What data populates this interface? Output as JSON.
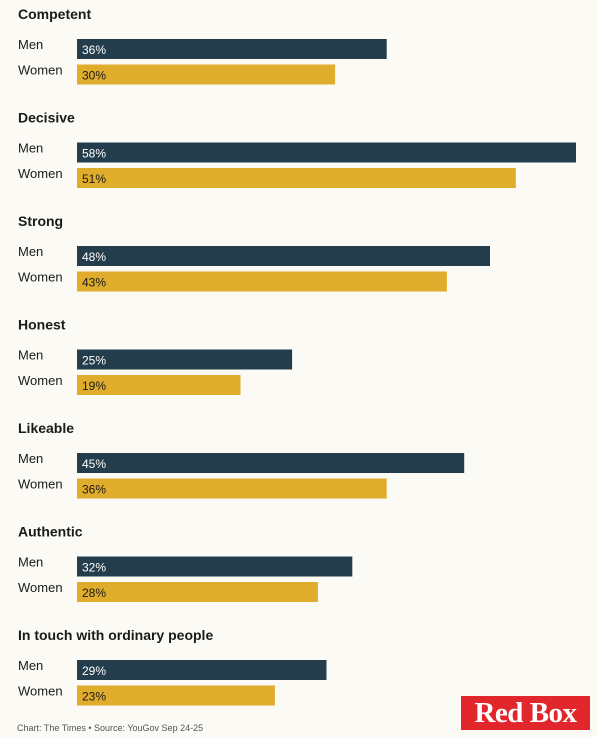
{
  "colors": {
    "men": "#243d4c",
    "women": "#e0ac2b",
    "men_text": "#ffffff",
    "women_text": "#1a1a1a"
  },
  "chart_data": {
    "type": "bar",
    "orientation": "horizontal",
    "title": "",
    "xlabel": "",
    "ylabel": "",
    "xlim": [
      0,
      58
    ],
    "value_suffix": "%",
    "grid": false,
    "categories": [
      "Competent",
      "Decisive",
      "Strong",
      "Honest",
      "Likeable",
      "Authentic",
      "In touch with ordinary people"
    ],
    "series": [
      {
        "name": "Men",
        "values": [
          36,
          58,
          48,
          25,
          45,
          32,
          29
        ]
      },
      {
        "name": "Women",
        "values": [
          30,
          51,
          43,
          19,
          36,
          28,
          23
        ]
      }
    ]
  },
  "footer": {
    "text": "Chart: The Times • Source: YouGov Sep 24-25"
  },
  "logo": {
    "text": "Red Box"
  }
}
